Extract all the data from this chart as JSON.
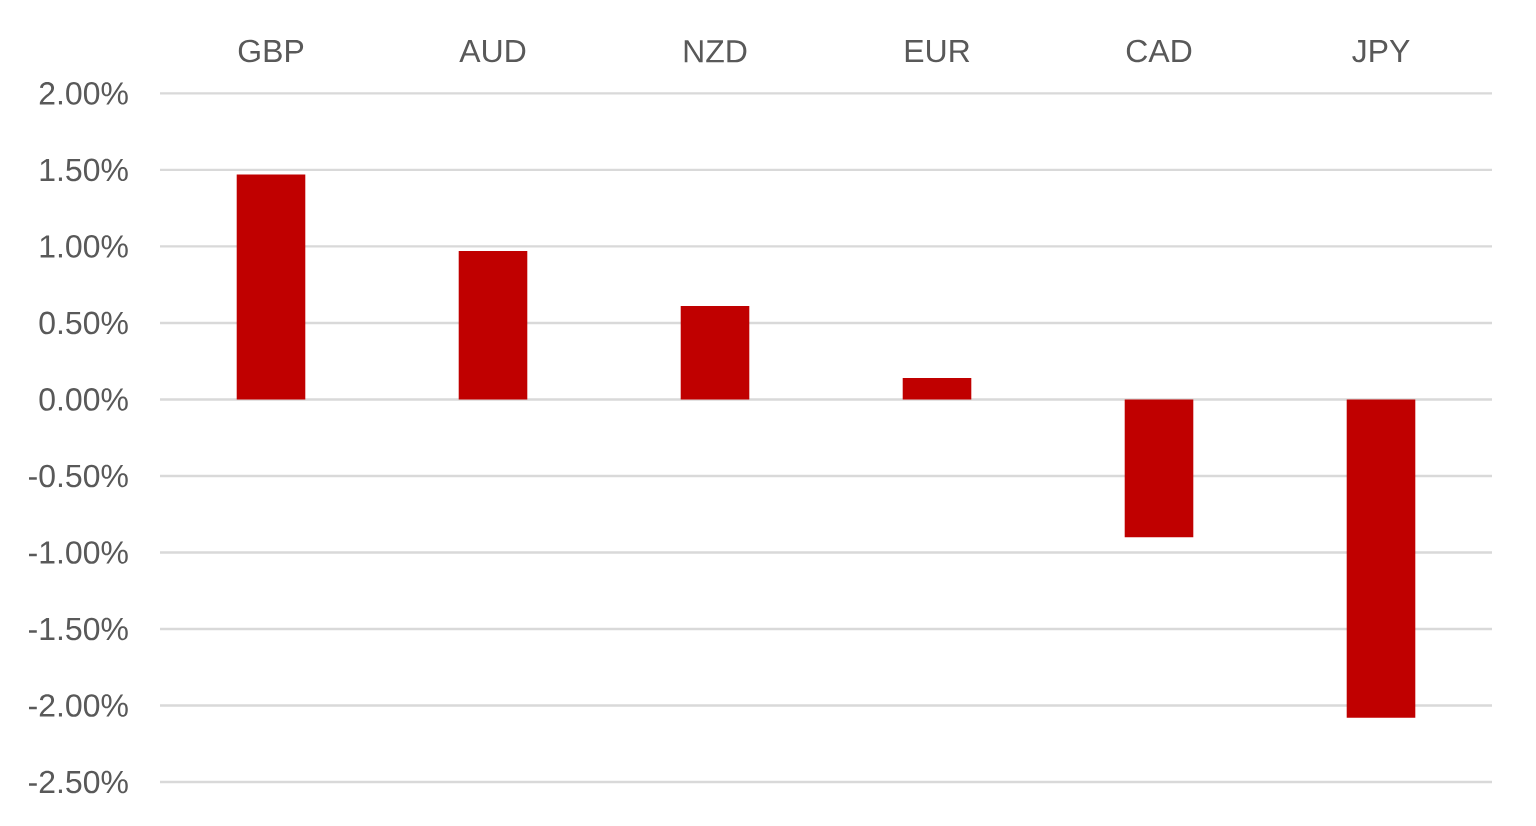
{
  "chart_data": {
    "type": "bar",
    "categories": [
      "GBP",
      "AUD",
      "NZD",
      "EUR",
      "CAD",
      "JPY"
    ],
    "values": [
      1.47,
      0.97,
      0.61,
      0.14,
      -0.9,
      -2.08
    ],
    "color": "#c00000",
    "ylim": [
      -2.5,
      2.0
    ],
    "yticks": [
      {
        "value": 2.0,
        "label": "2.00%"
      },
      {
        "value": 1.5,
        "label": "1.50%"
      },
      {
        "value": 1.0,
        "label": "1.00%"
      },
      {
        "value": 0.5,
        "label": "0.50%"
      },
      {
        "value": 0.0,
        "label": "0.00%"
      },
      {
        "value": -0.5,
        "label": "-0.50%"
      },
      {
        "value": -1.0,
        "label": "-1.00%"
      },
      {
        "value": -1.5,
        "label": "-1.50%"
      },
      {
        "value": -2.0,
        "label": "-2.00%"
      },
      {
        "value": -2.5,
        "label": "-2.50%"
      }
    ],
    "grid": "y"
  }
}
